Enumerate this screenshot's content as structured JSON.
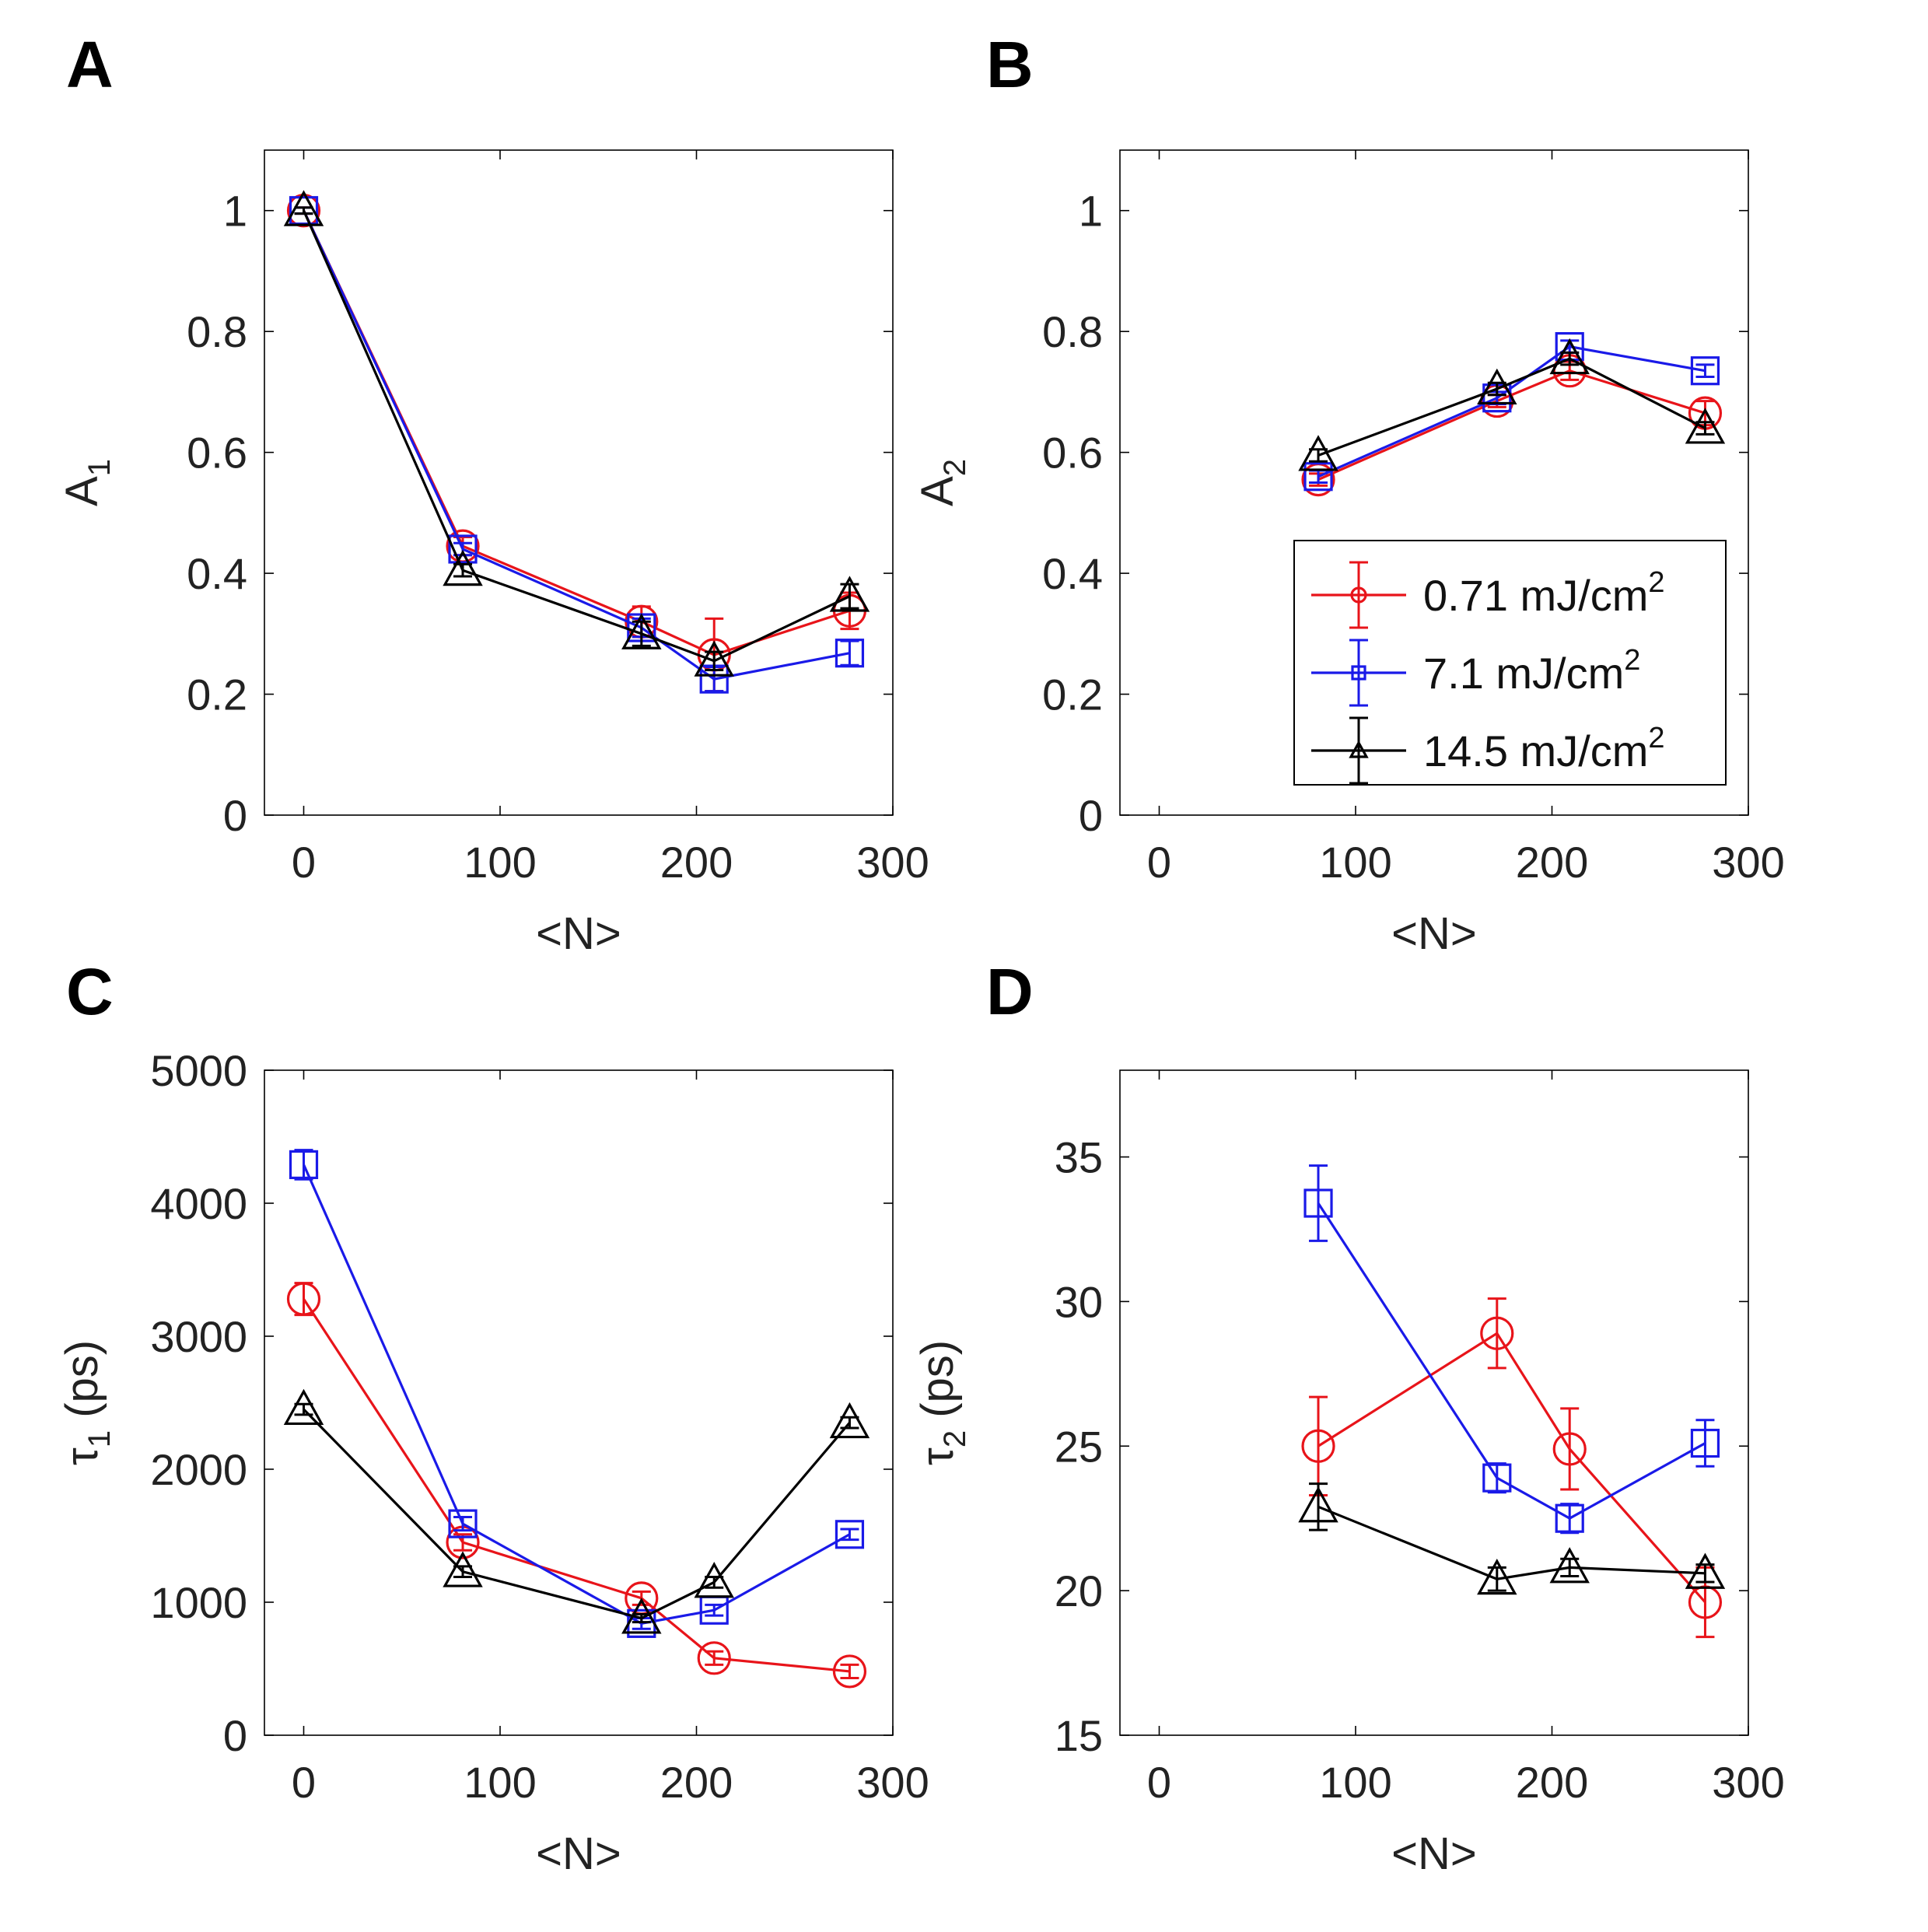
{
  "panel_letters": [
    "A",
    "B",
    "C",
    "D"
  ],
  "legend": {
    "entries": [
      {
        "label": "0.71 mJ/cm",
        "sup": "2",
        "color": "#e8141a",
        "marker": "circle"
      },
      {
        "label": "7.1 mJ/cm",
        "sup": "2",
        "color": "#1a1ae8",
        "marker": "square"
      },
      {
        "label": "14.5 mJ/cm",
        "sup": "2",
        "color": "#000000",
        "marker": "triangle"
      }
    ]
  },
  "chart_data": [
    {
      "type": "line",
      "panel": "A",
      "xlabel": "<N>",
      "ylabel": "A",
      "ylabel_sub": "1",
      "xlim": [
        -20,
        300
      ],
      "ylim": [
        0,
        1.1
      ],
      "xticks": [
        0,
        100,
        200,
        300
      ],
      "yticks": [
        0,
        0.2,
        0.4,
        0.6,
        0.8,
        1
      ],
      "ytick_labels": [
        "0",
        "0.2",
        "0.4",
        "0.6",
        "0.8",
        "1"
      ],
      "series": [
        {
          "name": "0.71 mJ/cm2",
          "color": "#e8141a",
          "marker": "circle",
          "x": [
            0,
            81,
            172,
            209,
            278
          ],
          "y": [
            1.0,
            0.445,
            0.32,
            0.265,
            0.338
          ],
          "err": [
            0.005,
            0.015,
            0.025,
            0.06,
            0.03
          ]
        },
        {
          "name": "7.1 mJ/cm2",
          "color": "#1a1ae8",
          "marker": "square",
          "x": [
            0,
            81,
            172,
            209,
            278
          ],
          "y": [
            1.0,
            0.44,
            0.31,
            0.225,
            0.268
          ],
          "err": [
            0.005,
            0.01,
            0.015,
            0.02,
            0.02
          ]
        },
        {
          "name": "14.5 mJ/cm2",
          "color": "#000000",
          "marker": "triangle",
          "x": [
            0,
            81,
            172,
            209,
            278
          ],
          "y": [
            1.0,
            0.405,
            0.3,
            0.255,
            0.362
          ],
          "err": [
            0.005,
            0.01,
            0.02,
            0.015,
            0.02
          ]
        }
      ]
    },
    {
      "type": "line",
      "panel": "B",
      "xlabel": "<N>",
      "ylabel": "A",
      "ylabel_sub": "2",
      "xlim": [
        -20,
        300
      ],
      "ylim": [
        0,
        1.1
      ],
      "xticks": [
        0,
        100,
        200,
        300
      ],
      "yticks": [
        0,
        0.2,
        0.4,
        0.6,
        0.8,
        1
      ],
      "ytick_labels": [
        "0",
        "0.2",
        "0.4",
        "0.6",
        "0.8",
        "1"
      ],
      "legend_position": "lower-right",
      "series": [
        {
          "name": "0.71 mJ/cm2",
          "color": "#e8141a",
          "marker": "circle",
          "x": [
            81,
            172,
            209,
            278
          ],
          "y": [
            0.555,
            0.685,
            0.735,
            0.665
          ],
          "err": [
            0.01,
            0.01,
            0.015,
            0.02
          ]
        },
        {
          "name": "7.1 mJ/cm2",
          "color": "#1a1ae8",
          "marker": "square",
          "x": [
            81,
            172,
            209,
            278
          ],
          "y": [
            0.56,
            0.69,
            0.775,
            0.735
          ],
          "err": [
            0.01,
            0.01,
            0.01,
            0.01
          ]
        },
        {
          "name": "14.5 mJ/cm2",
          "color": "#000000",
          "marker": "triangle",
          "x": [
            81,
            172,
            209,
            278
          ],
          "y": [
            0.595,
            0.705,
            0.755,
            0.64
          ],
          "err": [
            0.01,
            0.01,
            0.01,
            0.01
          ]
        }
      ]
    },
    {
      "type": "line",
      "panel": "C",
      "xlabel": "<N>",
      "ylabel": "τ",
      "ylabel_sub": "1",
      "ylabel_suffix": " (ps)",
      "xlim": [
        -20,
        300
      ],
      "ylim": [
        0,
        5000
      ],
      "xticks": [
        0,
        100,
        200,
        300
      ],
      "yticks": [
        0,
        1000,
        2000,
        3000,
        4000,
        5000
      ],
      "ytick_labels": [
        "0",
        "1000",
        "2000",
        "3000",
        "4000",
        "5000"
      ],
      "series": [
        {
          "name": "0.71 mJ/cm2",
          "color": "#e8141a",
          "marker": "circle",
          "x": [
            0,
            81,
            172,
            209,
            278
          ],
          "y": [
            3280,
            1450,
            1030,
            580,
            480
          ],
          "err": [
            120,
            60,
            50,
            50,
            50
          ]
        },
        {
          "name": "7.1 mJ/cm2",
          "color": "#1a1ae8",
          "marker": "square",
          "x": [
            0,
            81,
            172,
            209,
            278
          ],
          "y": [
            4290,
            1590,
            840,
            940,
            1510
          ],
          "err": [
            110,
            50,
            40,
            40,
            40
          ]
        },
        {
          "name": "14.5 mJ/cm2",
          "color": "#000000",
          "marker": "triangle",
          "x": [
            0,
            81,
            172,
            209,
            278
          ],
          "y": [
            2450,
            1230,
            880,
            1150,
            2350
          ],
          "err": [
            40,
            40,
            30,
            40,
            40
          ]
        }
      ]
    },
    {
      "type": "line",
      "panel": "D",
      "xlabel": "<N>",
      "ylabel": "τ",
      "ylabel_sub": "2",
      "ylabel_suffix": " (ps)",
      "xlim": [
        -20,
        300
      ],
      "ylim": [
        15,
        38
      ],
      "xticks": [
        0,
        100,
        200,
        300
      ],
      "yticks": [
        15,
        20,
        25,
        30,
        35
      ],
      "ytick_labels": [
        "15",
        "20",
        "25",
        "30",
        "35"
      ],
      "series": [
        {
          "name": "0.71 mJ/cm2",
          "color": "#e8141a",
          "marker": "circle",
          "x": [
            81,
            172,
            209,
            278
          ],
          "y": [
            25.0,
            28.9,
            24.9,
            19.6
          ],
          "err": [
            1.7,
            1.2,
            1.4,
            1.2
          ]
        },
        {
          "name": "7.1 mJ/cm2",
          "color": "#1a1ae8",
          "marker": "square",
          "x": [
            81,
            172,
            209,
            278
          ],
          "y": [
            33.4,
            23.9,
            22.5,
            25.1
          ],
          "err": [
            1.3,
            0.5,
            0.5,
            0.8
          ]
        },
        {
          "name": "14.5 mJ/cm2",
          "color": "#000000",
          "marker": "triangle",
          "x": [
            81,
            172,
            209,
            278
          ],
          "y": [
            22.9,
            20.4,
            20.8,
            20.6
          ],
          "err": [
            0.8,
            0.4,
            0.3,
            0.3
          ]
        }
      ]
    }
  ]
}
